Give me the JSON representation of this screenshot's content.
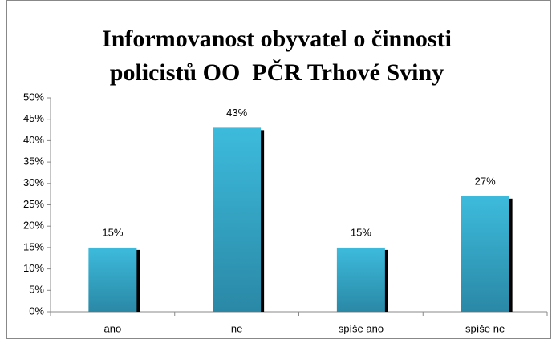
{
  "chart_data": {
    "type": "bar",
    "title": "Informovanost obyvatel o činnosti policistů OO  PČR Trhové Sviny",
    "categories": [
      "ano",
      "ne",
      "spíše ano",
      "spíše ne"
    ],
    "values": [
      15,
      43,
      15,
      27
    ],
    "value_labels": [
      "15%",
      "43%",
      "15%",
      "27%"
    ],
    "color": "#35afd0",
    "ylim": [
      0,
      50
    ],
    "yticks": [
      {
        "value": 0,
        "label": "0%"
      },
      {
        "value": 5,
        "label": "5%"
      },
      {
        "value": 10,
        "label": "10%"
      },
      {
        "value": 15,
        "label": "15%"
      },
      {
        "value": 20,
        "label": "20%"
      },
      {
        "value": 25,
        "label": "25%"
      },
      {
        "value": 30,
        "label": "30%"
      },
      {
        "value": 35,
        "label": "35%"
      },
      {
        "value": 40,
        "label": "40%"
      },
      {
        "value": 45,
        "label": "45%"
      },
      {
        "value": 50,
        "label": "50%"
      }
    ],
    "grid": false
  }
}
